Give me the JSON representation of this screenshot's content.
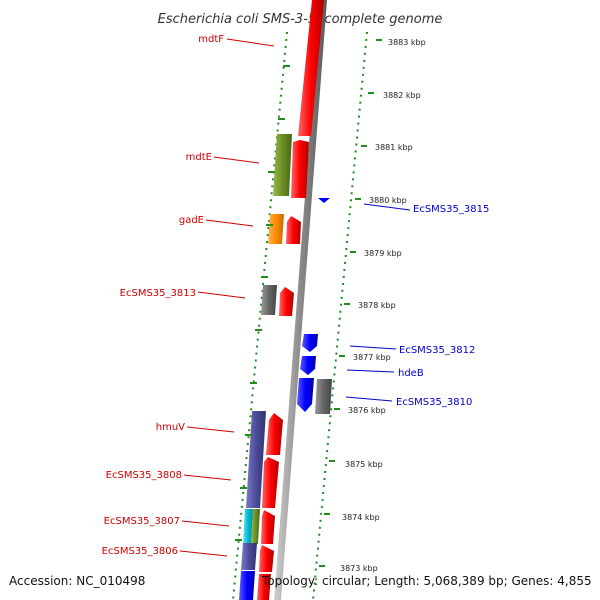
{
  "title": "Escherichia coli SMS-3-5, complete genome",
  "footer": {
    "accession": "Accession: NC_010498",
    "topology": "Topology: circular; Length: 5,068,389 bp; Genes: 4,855"
  },
  "kbp_ticks": [
    {
      "label": "3883 kbp"
    },
    {
      "label": "3882 kbp"
    },
    {
      "label": "3881 kbp"
    },
    {
      "label": "3880 kbp"
    },
    {
      "label": "3879 kbp"
    },
    {
      "label": "3878 kbp"
    },
    {
      "label": "3877 kbp"
    },
    {
      "label": "3876 kbp"
    },
    {
      "label": "3875 kbp"
    },
    {
      "label": "3874 kbp"
    },
    {
      "label": "3873 kbp"
    }
  ],
  "forward_labels": [
    {
      "name": "mdtF"
    },
    {
      "name": "mdtE"
    },
    {
      "name": "gadE"
    },
    {
      "name": "EcSMS35_3813"
    },
    {
      "name": "hmuV"
    },
    {
      "name": "EcSMS35_3808"
    },
    {
      "name": "EcSMS35_3807"
    },
    {
      "name": "EcSMS35_3806"
    }
  ],
  "reverse_labels": [
    {
      "name": "EcSMS35_3815"
    },
    {
      "name": "EcSMS35_3812"
    },
    {
      "name": "hdeB"
    },
    {
      "name": "EcSMS35_3810"
    }
  ],
  "colors": {
    "forward_cds": "#ff0000",
    "reverse_cds": "#0000ff",
    "cog_green": "#6b8e23",
    "cog_orange": "#ff8c00",
    "cog_gray": "#666666",
    "cog_purple": "#4b4b9b",
    "cog_cyan": "#00bcd4",
    "tick_green": "#228b22"
  }
}
